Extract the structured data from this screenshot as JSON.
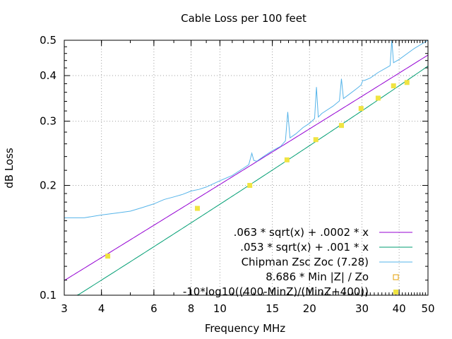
{
  "chart_data": {
    "type": "line",
    "title": "Cable Loss per 100 feet",
    "xlabel": "Frequency MHz",
    "ylabel": "dB Loss",
    "x_scale": "log",
    "y_scale": "log",
    "xlim": [
      3,
      50
    ],
    "ylim": [
      0.1,
      0.5
    ],
    "grid": true,
    "legend_position": "bottom-right",
    "x_ticks": [
      {
        "value": 3,
        "label": "3"
      },
      {
        "value": 4,
        "label": "4"
      },
      {
        "value": 6,
        "label": "6"
      },
      {
        "value": 8,
        "label": "8"
      },
      {
        "value": 10,
        "label": "10"
      },
      {
        "value": 15,
        "label": "15"
      },
      {
        "value": 20,
        "label": "20"
      },
      {
        "value": 30,
        "label": "30"
      },
      {
        "value": 40,
        "label": "40"
      },
      {
        "value": 50,
        "label": "50"
      }
    ],
    "y_ticks": [
      {
        "value": 0.1,
        "label": "0.1"
      },
      {
        "value": 0.2,
        "label": "0.2"
      },
      {
        "value": 0.3,
        "label": "0.3"
      },
      {
        "value": 0.4,
        "label": "0.4"
      },
      {
        "value": 0.5,
        "label": "0.5"
      }
    ],
    "series": [
      {
        "name": ".063 * sqrt(x) + .0002 * x",
        "kind": "formula",
        "a": 0.063,
        "b": 0.0002,
        "color": "#9400d3"
      },
      {
        "name": ".053 * sqrt(x) + .001 * x",
        "kind": "formula",
        "a": 0.053,
        "b": 0.001,
        "color": "#009e73"
      },
      {
        "name": "Chipman Zsc Zoc (7.28)",
        "kind": "measured",
        "color": "#56b4e9",
        "x": [
          3.0,
          3.5,
          4.0,
          4.5,
          5.0,
          5.5,
          6.0,
          6.5,
          7.0,
          7.5,
          8.0,
          8.5,
          9.0,
          10.0,
          11.0,
          12.0,
          12.5,
          12.8,
          13.0,
          13.3,
          14.0,
          15.0,
          16.0,
          16.6,
          16.9,
          17.2,
          18.0,
          19.0,
          20.0,
          20.8,
          21.1,
          21.4,
          22.0,
          24.0,
          25.2,
          25.6,
          26.0,
          27.0,
          29.0,
          29.8,
          30.2,
          30.6,
          32.0,
          34.0,
          36.0,
          37.3,
          37.8,
          38.3,
          40.0,
          45.0,
          50.0
        ],
        "y": [
          0.163,
          0.163,
          0.166,
          0.168,
          0.17,
          0.174,
          0.178,
          0.183,
          0.186,
          0.189,
          0.193,
          0.195,
          0.198,
          0.206,
          0.213,
          0.223,
          0.228,
          0.245,
          0.234,
          0.233,
          0.24,
          0.249,
          0.256,
          0.265,
          0.318,
          0.27,
          0.277,
          0.288,
          0.296,
          0.305,
          0.372,
          0.308,
          0.315,
          0.33,
          0.341,
          0.392,
          0.346,
          0.354,
          0.37,
          0.377,
          0.388,
          0.388,
          0.394,
          0.408,
          0.419,
          0.426,
          0.505,
          0.434,
          0.443,
          0.475,
          0.5
        ]
      },
      {
        "name": "8.686 * Min |Z| / Zo",
        "kind": "points",
        "marker": "open-square",
        "color": "#e69f00",
        "x": [],
        "y": []
      },
      {
        "name": "-10*log10((400-MinZ)/(MinZ+400))",
        "kind": "points",
        "marker": "filled-square",
        "color": "#f0e442",
        "x": [
          4.2,
          8.4,
          12.6,
          16.8,
          21.0,
          25.6,
          29.8,
          34.0,
          38.3,
          42.5
        ],
        "y": [
          0.128,
          0.173,
          0.2,
          0.235,
          0.267,
          0.292,
          0.325,
          0.347,
          0.375,
          0.383
        ]
      }
    ]
  }
}
